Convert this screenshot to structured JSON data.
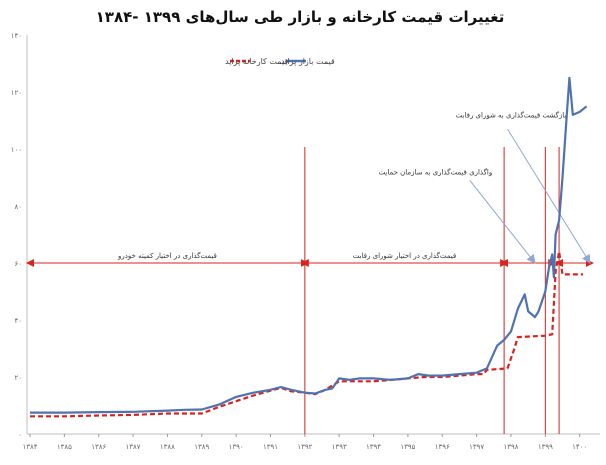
{
  "chart_data": {
    "type": "line",
    "title": "تغییرات قیمت کارخانه و بازار طی سال‌های ۱۳۹۹ -۱۳۸۴",
    "x_ticks": [
      "۱۳۸۴",
      "۱۳۸۵",
      "۱۳۸۶",
      "۱۳۸۷",
      "۱۳۸۸",
      "۱۳۸۹",
      "۱۳۹۰",
      "۱۳۹۱",
      "۱۳۹۲",
      "۱۳۹۳",
      "۱۳۹۴",
      "۱۳۹۵",
      "۱۳۹۶",
      "۱۳۹۷",
      "۱۳۹۸",
      "۱۳۹۹",
      "۱۴۰۰"
    ],
    "x_tick_values": [
      1384,
      1385,
      1386,
      1387,
      1388,
      1389,
      1390,
      1391,
      1392,
      1393,
      1394,
      1395,
      1396,
      1397,
      1398,
      1399,
      1400
    ],
    "y_ticks": [
      "۰",
      "۲۰",
      "۴۰",
      "۶۰",
      "۸۰",
      "۱۰۰",
      "۱۲۰",
      "۱۴۰"
    ],
    "y_tick_values": [
      0,
      20,
      40,
      60,
      80,
      100,
      120,
      140
    ],
    "xlim": [
      1384,
      1400.3
    ],
    "ylim": [
      0,
      140
    ],
    "grid": false,
    "legend_position": "top-center",
    "series": [
      {
        "name": "قیمت بازار پراید",
        "color": "#4f72b0",
        "style": "solid",
        "x": [
          1384,
          1385,
          1386,
          1387,
          1388,
          1388.5,
          1389,
          1389.5,
          1390,
          1390.5,
          1391,
          1391.3,
          1391.6,
          1392,
          1392.3,
          1392.6,
          1392.8,
          1393,
          1393.3,
          1393.6,
          1394,
          1394.5,
          1395,
          1395.3,
          1395.6,
          1396,
          1396.5,
          1397,
          1397.3,
          1397.6,
          1397.8,
          1398,
          1398.2,
          1398.4,
          1398.5,
          1398.7,
          1398.8,
          1399,
          1399.1,
          1399.2,
          1399.25,
          1399.3,
          1399.4,
          1399.5,
          1399.6,
          1399.7,
          1399.8,
          1400,
          1400.2
        ],
        "values": [
          7.5,
          7.5,
          7.7,
          7.8,
          8.2,
          8.5,
          8.6,
          10.3,
          13,
          14.5,
          15.5,
          16.5,
          15.5,
          14.5,
          14.2,
          15.5,
          16,
          19.5,
          19,
          19.5,
          19.5,
          19,
          19.5,
          21,
          20.5,
          20.5,
          21,
          21.5,
          23,
          31,
          33,
          36,
          44,
          49,
          43,
          41,
          43,
          50,
          58,
          63,
          55,
          70,
          75,
          90,
          108,
          125,
          112,
          113,
          115
        ]
      },
      {
        "name": "قیمت کارخانه پراید",
        "color": "#d9231f",
        "style": "dashed",
        "x": [
          1384,
          1385,
          1386,
          1387,
          1388,
          1389,
          1389.5,
          1390,
          1390.5,
          1391,
          1391.3,
          1391.6,
          1392,
          1392.3,
          1392.6,
          1393,
          1393.5,
          1394,
          1394.5,
          1395,
          1395.5,
          1396,
          1396.5,
          1397,
          1397.2,
          1397.3,
          1397.9,
          1398.1,
          1398.2,
          1399,
          1399.2,
          1399.3,
          1399.4,
          1399.5,
          1400.1
        ],
        "values": [
          6.2,
          6.2,
          6.5,
          6.7,
          7.2,
          7.2,
          9.5,
          11.5,
          13.5,
          15.2,
          16.2,
          15,
          14.5,
          14,
          15.5,
          18.5,
          18.5,
          18.5,
          19,
          19.5,
          20,
          20,
          20.5,
          21,
          21,
          22.5,
          23,
          30,
          34,
          34.5,
          35,
          57,
          64,
          56,
          56
        ]
      }
    ],
    "separator_lines": [
      {
        "x": 1392
      },
      {
        "x": 1397.8
      },
      {
        "x": 1399
      },
      {
        "x": 1399.4
      }
    ],
    "periods": [
      {
        "label": "قیمت‌گذاری در اختیار کمیته خودرو",
        "x_start": 1384,
        "x_end": 1392,
        "y": 60
      },
      {
        "label": "قیمت‌گذاری در اختیار شورای رقابت",
        "x_start": 1392,
        "x_end": 1397.8,
        "y": 60
      },
      {
        "label": "",
        "x_start": 1397.8,
        "x_end": 1399.2,
        "y": 60
      },
      {
        "label": "",
        "x_start": 1399.4,
        "x_end": 1400.3,
        "y": 60
      }
    ],
    "annotations": [
      {
        "text": "واگذاری قیمت‌گذاری به سازمان حمایت",
        "text_x": 1395.8,
        "text_y": 91,
        "arrow_from": [
          1396.8,
          89
        ],
        "arrow_to": [
          1398.7,
          60
        ]
      },
      {
        "text": "بازگشت قیمت‌گذاری به شورای رقابت",
        "text_x": 1398.0,
        "text_y": 111,
        "arrow_from": [
          1397.9,
          107
        ],
        "arrow_to": [
          1400.3,
          60
        ]
      }
    ]
  }
}
